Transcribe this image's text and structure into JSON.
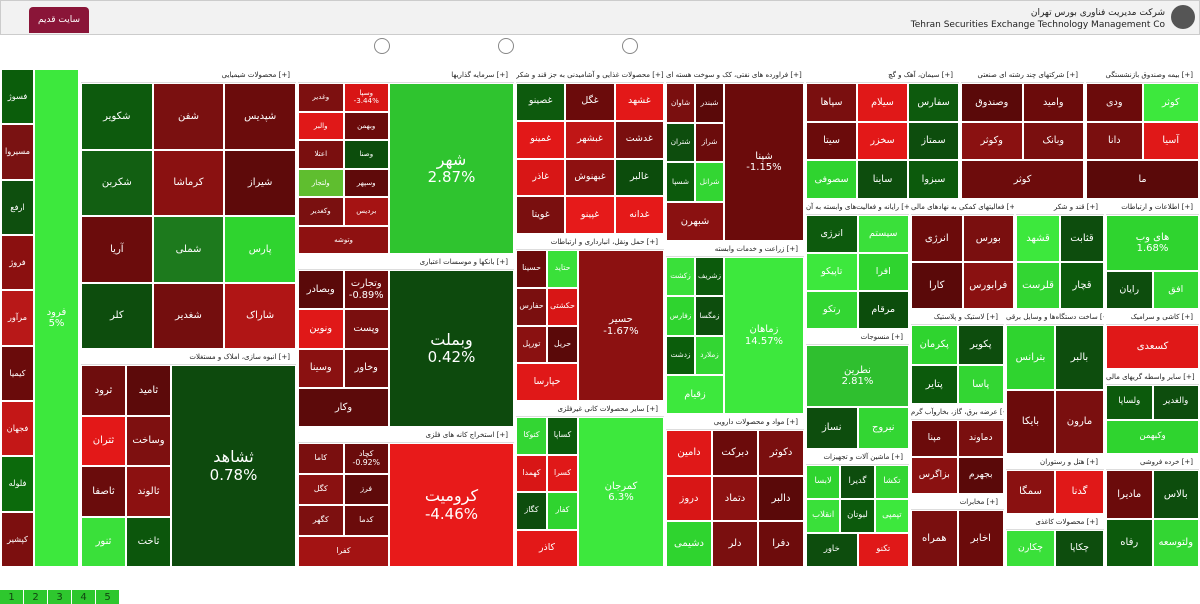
{
  "header": {
    "tab": "سایت قدیم",
    "company_fa": "شرکت مدیریت فناوری بورس تهران",
    "company_en": "Tehran Securities Exchange Technology Management Co"
  },
  "sectors": [
    {
      "tiles": [
        {
          "label": "فرود",
          "change": "5%",
          "color": "#3de83d"
        },
        {
          "label": "فسوژ",
          "color": "#0b5d0b"
        },
        {
          "label": "مسیروا",
          "color": "#7a1212"
        },
        {
          "label": "ارفع",
          "color": "#0e4f0e"
        },
        {
          "label": "فروژ",
          "color": "#8b1010"
        },
        {
          "label": "مرآور",
          "color": "#b81818"
        },
        {
          "label": "کیمیا",
          "color": "#6a0b0b"
        },
        {
          "label": "فجهان",
          "color": "#c41717"
        },
        {
          "label": "فلوله",
          "color": "#0c6a0c"
        },
        {
          "label": "کپشیر",
          "color": "#7c0f0f"
        }
      ]
    },
    {
      "title": "محصولات شیمیایی [+]",
      "tiles": [
        {
          "label": "شپدیس",
          "color": "#6b0c0c"
        },
        {
          "label": "شفن",
          "color": "#7a1010"
        },
        {
          "label": "شکویر",
          "color": "#0d5a0d"
        },
        {
          "label": "شیراز",
          "color": "#5e0a0a"
        },
        {
          "label": "کرماشا",
          "color": "#8a1111"
        },
        {
          "label": "شکربن",
          "color": "#125f12"
        },
        {
          "label": "پارس",
          "color": "#2fd42f"
        },
        {
          "label": "شملی",
          "color": "#1d7a1d"
        },
        {
          "label": "آریا",
          "color": "#6b0c0c"
        },
        {
          "label": "شاراک",
          "color": "#b01515"
        },
        {
          "label": "شغدیر",
          "color": "#740e0e"
        },
        {
          "label": "کلر",
          "color": "#0d4d0d"
        }
      ]
    },
    {
      "title": "انبوه سازی، املاک و مستغلات [+]",
      "tiles": [
        {
          "label": "ثشاهد",
          "change": "0.78%",
          "color": "#0d4a0d"
        },
        {
          "label": "ثامید",
          "color": "#5c0a0a"
        },
        {
          "label": "ثرود",
          "color": "#6e0d0d"
        },
        {
          "label": "وساخت",
          "color": "#7e1010"
        },
        {
          "label": "ثتران",
          "color": "#e31818"
        },
        {
          "label": "ثالوند",
          "color": "#8c1111"
        },
        {
          "label": "ثاصفا",
          "color": "#6a0c0c"
        },
        {
          "label": "ثاخت",
          "color": "#0c560c"
        },
        {
          "label": "ثنور",
          "color": "#3ae03a"
        }
      ]
    },
    {
      "title": "سرمایه گذاریها [+]",
      "tiles": [
        {
          "label": "شهر",
          "change": "2.87%",
          "color": "#2fc42f"
        },
        {
          "label": "وسپا",
          "change": "-3.44%",
          "color": "#d81515"
        },
        {
          "label": "وغدیر",
          "color": "#7d1010"
        },
        {
          "label": "وبهمن",
          "color": "#6b0b0b"
        },
        {
          "label": "والبر",
          "color": "#e01818"
        },
        {
          "label": "وصنا",
          "color": "#0c4d0c"
        },
        {
          "label": "اعتلا",
          "color": "#7a0f0f"
        },
        {
          "label": "وسپهر",
          "color": "#5f0a0a"
        },
        {
          "label": "ولتجار",
          "color": "#5fbe2f"
        },
        {
          "label": "بردیس",
          "color": "#a51313"
        },
        {
          "label": "وکغدیر",
          "color": "#7a1010"
        },
        {
          "label": "وتوشه",
          "color": "#8e1111"
        }
      ]
    },
    {
      "title": "بانکها و موسسات اعتباری [+]",
      "tiles": [
        {
          "label": "وبملت",
          "change": "0.42%",
          "color": "#0d4a0d"
        },
        {
          "label": "وتجارت",
          "change": "-0.89%",
          "color": "#6b0b0b"
        },
        {
          "label": "وبصادر",
          "color": "#5a0909"
        },
        {
          "label": "وپست",
          "color": "#7a0f0f"
        },
        {
          "label": "ونوین",
          "color": "#e01818"
        },
        {
          "label": "وخاور",
          "color": "#6d0c0c"
        },
        {
          "label": "وسینا",
          "color": "#8a1111"
        },
        {
          "label": "وکار",
          "color": "#5c0a0a"
        }
      ]
    },
    {
      "title": "استخراج کانه های فلزی [+]",
      "tiles": [
        {
          "label": "کرومیت",
          "change": "-4.46%",
          "color": "#e81a1a"
        },
        {
          "label": "کچاد",
          "change": "-0.92%",
          "color": "#6a0b0b"
        },
        {
          "label": "کاما",
          "color": "#7a0f0f"
        },
        {
          "label": "فرز",
          "color": "#5e0a0a"
        },
        {
          "label": "کگل",
          "color": "#8a1111"
        },
        {
          "label": "کدما",
          "color": "#6b0b0b"
        },
        {
          "label": "کگهر",
          "color": "#7d1010"
        },
        {
          "label": "کفرا",
          "color": "#a31313"
        }
      ]
    },
    {
      "title": "محصولات غذایی و آشامیدنی به جز قند و شکر [+]",
      "tiles": [
        {
          "label": "غشهد",
          "color": "#e31818"
        },
        {
          "label": "غگل",
          "color": "#6b0b0b"
        },
        {
          "label": "غصینو",
          "color": "#0d5a0d"
        },
        {
          "label": "غدشت",
          "color": "#7a0f0f"
        },
        {
          "label": "غبشهر",
          "color": "#c01616"
        },
        {
          "label": "غمینو",
          "color": "#e21818"
        },
        {
          "label": "غالبر",
          "color": "#0c4c0c"
        },
        {
          "label": "غبهنوش",
          "color": "#8e1111"
        },
        {
          "label": "غاذر",
          "color": "#d81616"
        },
        {
          "label": "غدانه",
          "color": "#e51919"
        },
        {
          "label": "غپینو",
          "color": "#e61a1a"
        },
        {
          "label": "غویتا",
          "color": "#7a0f0f"
        }
      ]
    },
    {
      "title": "حمل ونقل، انبارداری و ارتباطات [+]",
      "tiles": [
        {
          "label": "حسیر",
          "change": "-1.67%",
          "color": "#8c1111"
        },
        {
          "label": "حتاید",
          "color": "#3ae03a"
        },
        {
          "label": "حسینا",
          "color": "#6b0b0b"
        },
        {
          "label": "حکشتی",
          "color": "#d81616"
        },
        {
          "label": "حفارس",
          "color": "#7a0f0f"
        },
        {
          "label": "حریل",
          "color": "#5a0909"
        },
        {
          "label": "تورپل",
          "color": "#8a1111"
        },
        {
          "label": "حپارسا",
          "color": "#e01818"
        }
      ]
    },
    {
      "title": "سایر محصولات کانی غیرفلزی [+]",
      "tiles": [
        {
          "label": "کمرجان",
          "change": "6.3%",
          "color": "#3de83d"
        },
        {
          "label": "کساپا",
          "color": "#0c5a0c"
        },
        {
          "label": "کتوکا",
          "color": "#33d633"
        },
        {
          "label": "کسرا",
          "color": "#e01818"
        },
        {
          "label": "کهمدا",
          "color": "#d81616"
        },
        {
          "label": "کفار",
          "color": "#2fd42f"
        },
        {
          "label": "کگاز",
          "color": "#0d4d0d"
        },
        {
          "label": "کاذر",
          "color": "#e31818"
        }
      ]
    },
    {
      "title": "فراورده های نفتی، کک و سوخت هسته ای [+]",
      "tiles": [
        {
          "label": "شپنا",
          "change": "-1.15%",
          "color": "#6b0b0b"
        },
        {
          "label": "شبندر",
          "color": "#5a0909"
        },
        {
          "label": "شاوان",
          "color": "#7a0f0f"
        },
        {
          "label": "شراز",
          "color": "#6b0c0c"
        },
        {
          "label": "شتران",
          "color": "#0d4d0d"
        },
        {
          "label": "شرانل",
          "color": "#33d633"
        },
        {
          "label": "شسپا",
          "color": "#0c5a0c"
        },
        {
          "label": "شبهرن",
          "color": "#8a1111"
        }
      ]
    },
    {
      "title": "زراعت و خدمات وابسته [+]",
      "tiles": [
        {
          "label": "زماهان",
          "change": "14.57%",
          "color": "#3de83d"
        },
        {
          "label": "زشریف",
          "color": "#0c5a0c"
        },
        {
          "label": "زکشت",
          "color": "#3ae03a"
        },
        {
          "label": "زمگسا",
          "color": "#0d4d0d"
        },
        {
          "label": "زفارس",
          "color": "#2fd42f"
        },
        {
          "label": "زملارد",
          "color": "#33d633"
        },
        {
          "label": "زدشت",
          "color": "#0b5d0b"
        },
        {
          "label": "زقیام",
          "color": "#3de83d"
        }
      ]
    },
    {
      "title": "مواد و محصولات دارویی [+]",
      "tiles": [
        {
          "label": "دکوثر",
          "color": "#7a0f0f"
        },
        {
          "label": "دبرکت",
          "color": "#6b0b0b"
        },
        {
          "label": "دامین",
          "color": "#e01818"
        },
        {
          "label": "دالبر",
          "color": "#5a0909"
        },
        {
          "label": "دتماد",
          "color": "#8c1111"
        },
        {
          "label": "دروز",
          "color": "#d81616"
        },
        {
          "label": "دفرا",
          "color": "#6d0c0c"
        },
        {
          "label": "دلر",
          "color": "#7a0f0f"
        },
        {
          "label": "دشیمی",
          "color": "#2fd42f"
        }
      ]
    },
    {
      "title": "سیمان، آهک و گچ [+]",
      "tiles": [
        {
          "label": "سفارس",
          "color": "#0d5a0d"
        },
        {
          "label": "سیلام",
          "color": "#e01818"
        },
        {
          "label": "سپاها",
          "color": "#7a0f0f"
        },
        {
          "label": "سمتاز",
          "color": "#0d4d0d"
        },
        {
          "label": "سخزر",
          "color": "#e31818"
        },
        {
          "label": "سیتا",
          "color": "#6b0b0b"
        },
        {
          "label": "سبزوا",
          "color": "#0c5a0c"
        },
        {
          "label": "ساینا",
          "color": "#0d4d0d"
        },
        {
          "label": "سصوفی",
          "color": "#2fd42f"
        }
      ]
    },
    {
      "title": "رایانه و فعالیت‌های وابسته به آن [+]",
      "tiles": [
        {
          "label": "سیستم",
          "color": "#3ae03a"
        },
        {
          "label": "انرژی",
          "color": "#0d5a0d"
        },
        {
          "label": "افرا",
          "color": "#2fd42f"
        },
        {
          "label": "تاپیکو",
          "color": "#3de83d"
        },
        {
          "label": "مرقام",
          "color": "#0c4d0c"
        },
        {
          "label": "رتکو",
          "color": "#33d633"
        }
      ]
    },
    {
      "title": "منسوجات [+]",
      "tiles": [
        {
          "label": "نطرین",
          "change": "2.81%",
          "color": "#2fbf2f"
        },
        {
          "label": "نساز",
          "color": "#0d4d0d"
        },
        {
          "label": "نبروج",
          "color": "#33d633"
        }
      ]
    },
    {
      "title": "ماشین آلات و تجهیزات [+]",
      "tiles": [
        {
          "label": "تکشا",
          "color": "#33d633"
        },
        {
          "label": "گدیرا",
          "color": "#0d4d0d"
        },
        {
          "label": "لابسا",
          "color": "#2fd42f"
        },
        {
          "label": "تپمپی",
          "color": "#3de83d"
        },
        {
          "label": "لبوتان",
          "color": "#0c5a0c"
        },
        {
          "label": "انقلاب",
          "color": "#3ae03a"
        },
        {
          "label": "تکنو",
          "color": "#e01818"
        },
        {
          "label": "خاور",
          "color": "#0d4d0d"
        }
      ]
    },
    {
      "title": "فعالیتهای کمکی به نهادهای مالی [+]",
      "tiles": [
        {
          "label": "بورس",
          "color": "#7a0f0f"
        },
        {
          "label": "انرژی",
          "color": "#6b0b0b"
        },
        {
          "label": "فرابورس",
          "color": "#8a1111"
        },
        {
          "label": "کارا",
          "color": "#5a0909"
        }
      ]
    },
    {
      "title": "لاستیک و پلاستیک [+]",
      "tiles": [
        {
          "label": "پکویر",
          "color": "#0d4d0d"
        },
        {
          "label": "پکرمان",
          "color": "#2fd42f"
        },
        {
          "label": "پاسا",
          "color": "#33d633"
        },
        {
          "label": "پتایر",
          "color": "#0c5a0c"
        }
      ]
    },
    {
      "title": "عرضه برق، گاز، بخاروآب گرم [+]",
      "tiles": [
        {
          "label": "دماوند",
          "color": "#7a0f0f"
        },
        {
          "label": "مپنا",
          "color": "#6b0b0b"
        },
        {
          "label": "بجهرم",
          "color": "#5a0909"
        },
        {
          "label": "بزاگرس",
          "color": "#8a1111"
        }
      ]
    },
    {
      "title": "مخابرات [+]",
      "tiles": [
        {
          "label": "اخابر",
          "color": "#6b0b0b"
        },
        {
          "label": "همراه",
          "color": "#7a0f0f"
        }
      ]
    },
    {
      "title": "شرکتهای چند رشته ای صنعتی [+]",
      "tiles": [
        {
          "label": "وامید",
          "color": "#6b0b0b"
        },
        {
          "label": "وصندوق",
          "color": "#5a0909"
        },
        {
          "label": "وبانک",
          "color": "#7a0f0f"
        },
        {
          "label": "وکوثر",
          "color": "#8a1111"
        },
        {
          "label": "کوثر",
          "color": "#6d0c0c"
        }
      ]
    },
    {
      "title": "قند و شکر [+]",
      "tiles": [
        {
          "label": "قثابت",
          "color": "#0d4d0d"
        },
        {
          "label": "قشهد",
          "color": "#3de83d"
        },
        {
          "label": "قچار",
          "color": "#0c5a0c"
        },
        {
          "label": "قلرست",
          "color": "#33d633"
        }
      ]
    },
    {
      "title": "ساخت دستگاه‌ها و وسایل برقی [+]",
      "tiles": [
        {
          "label": "بالبر",
          "color": "#0d4d0d"
        },
        {
          "label": "بترانس",
          "color": "#2fd42f"
        },
        {
          "label": "مارون",
          "color": "#7a0f0f"
        },
        {
          "label": "بایکا",
          "color": "#6b0b0b"
        }
      ]
    },
    {
      "title": "هتل و رستوران [+]",
      "tiles": [
        {
          "label": "گدنا",
          "color": "#e01818"
        },
        {
          "label": "سمگا",
          "color": "#8a1111"
        }
      ]
    },
    {
      "title": "محصولات کاغذی [+]",
      "tiles": [
        {
          "label": "چکاپا",
          "color": "#0d4d0d"
        },
        {
          "label": "چکارن",
          "color": "#3ae03a"
        }
      ]
    },
    {
      "title": "بیمه وصندوق بازنشستگی [+]",
      "tiles": [
        {
          "label": "کوثر",
          "color": "#3de83d"
        },
        {
          "label": "ودی",
          "color": "#6b0b0b"
        },
        {
          "label": "آسیا",
          "color": "#e01818"
        },
        {
          "label": "دانا",
          "color": "#7a0f0f"
        },
        {
          "label": "ما",
          "color": "#5a0909"
        }
      ]
    },
    {
      "title": "اطلاعات و ارتباطات [+]",
      "tiles": [
        {
          "label": "های وب",
          "change": "1.68%",
          "color": "#2fd42f"
        },
        {
          "label": "رایان",
          "color": "#0d4d0d"
        },
        {
          "label": "افق",
          "color": "#33d633"
        }
      ]
    },
    {
      "title": "کاشی و سرامیک [+]",
      "tiles": [
        {
          "label": "کسعدی",
          "color": "#e01818"
        }
      ]
    },
    {
      "title": "سایر واسطه گریهای مالی [+]",
      "tiles": [
        {
          "label": "والغدیر",
          "color": "#0d4d0d"
        },
        {
          "label": "ولساپا",
          "color": "#0c5a0c"
        },
        {
          "label": "وکبهمن",
          "color": "#2fd42f"
        }
      ]
    },
    {
      "title": "خرده فروشی [+]",
      "tiles": [
        {
          "label": "بالاس",
          "color": "#0d4d0d"
        },
        {
          "label": "مادیرا",
          "color": "#6b0b0b"
        },
        {
          "label": "ولتوسعه",
          "color": "#33d633"
        },
        {
          "label": "رفاه",
          "color": "#0c5a0c"
        }
      ]
    }
  ],
  "pages": [
    "1",
    "2",
    "3",
    "4",
    "5"
  ]
}
